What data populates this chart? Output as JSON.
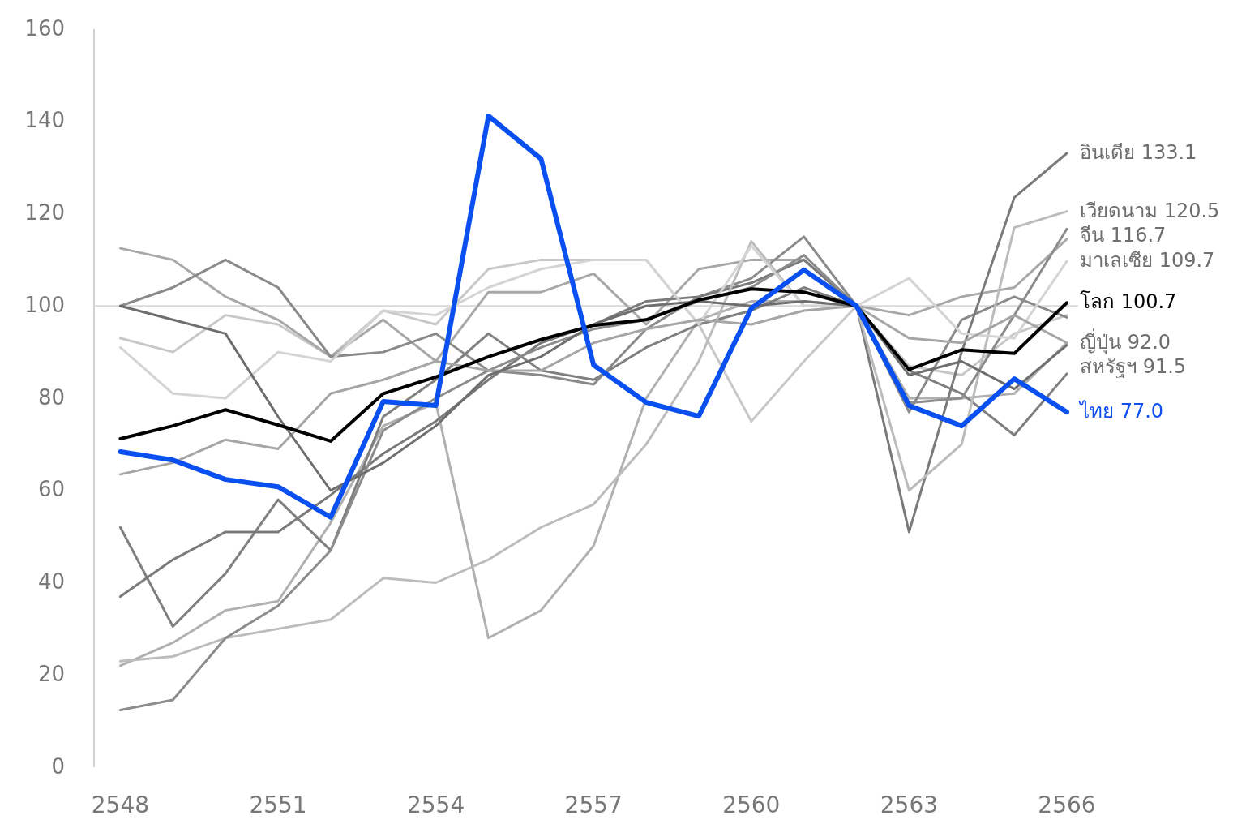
{
  "chart_data": {
    "type": "line",
    "x": [
      2548,
      2549,
      2550,
      2551,
      2552,
      2553,
      2554,
      2555,
      2556,
      2557,
      2558,
      2559,
      2560,
      2561,
      2562,
      2563,
      2564,
      2565,
      2566
    ],
    "xlim": [
      2547.5,
      2566
    ],
    "xticks": [
      2548,
      2551,
      2554,
      2557,
      2560,
      2563,
      2566
    ],
    "ylim": [
      0,
      160
    ],
    "yticks": [
      0,
      20,
      40,
      60,
      80,
      100,
      120,
      140,
      160
    ],
    "grid": false,
    "marker": "none",
    "line_style": "solid",
    "ref_lines": [
      {
        "axis": "y",
        "value": 100,
        "color": "#d9d9d9"
      }
    ],
    "series": [
      {
        "color": "#c8c8c8",
        "values": [
          93,
          90,
          98,
          96,
          89,
          99,
          96,
          108,
          110,
          110,
          110,
          96,
          75,
          88,
          100,
          87,
          85,
          94,
          98
        ]
      },
      {
        "color": "#b0b0b0",
        "values": [
          22,
          27,
          34,
          36,
          53,
          74,
          79,
          28,
          34,
          48,
          80,
          97,
          101,
          101,
          100,
          80,
          80,
          81,
          92
        ]
      },
      {
        "color": "#7f7f7f",
        "values": [
          52,
          30.5,
          42,
          58,
          47,
          76,
          84,
          94,
          86,
          84,
          91,
          96,
          99,
          104,
          100,
          86,
          81,
          72,
          85.3
        ]
      },
      {
        "color": "#a8a8a8",
        "values": [
          112.5,
          110,
          102,
          97,
          89,
          97,
          88,
          103,
          103,
          107,
          96,
          108,
          110,
          110,
          100,
          98,
          102,
          104,
          114.5
        ]
      },
      {
        "color": "#8a8a8a",
        "values": [
          100,
          104,
          110,
          104,
          89,
          90,
          94,
          86,
          85,
          83,
          95,
          102,
          106,
          115,
          100,
          77,
          97,
          102,
          97.5
        ]
      },
      {
        "name": "อินเดีย",
        "color": "#7a7a7a",
        "values": [
          37,
          45,
          51,
          51,
          59,
          68,
          75,
          84,
          92,
          96,
          101,
          102,
          105,
          110,
          100,
          51,
          90,
          123.5,
          133.1
        ],
        "value_labels": [
          null,
          null,
          null,
          null,
          null,
          null,
          null,
          null,
          null,
          null,
          null,
          null,
          null,
          null,
          null,
          null,
          null,
          null,
          "133.1"
        ]
      },
      {
        "name": "เวียดนาม",
        "color": "#bcbcbc",
        "values": [
          23,
          24,
          28,
          30,
          32,
          41,
          40,
          45,
          52,
          57,
          70,
          88,
          114,
          100,
          100,
          60,
          70,
          117,
          120.5
        ],
        "value_labels": [
          null,
          null,
          null,
          null,
          null,
          null,
          null,
          null,
          null,
          null,
          null,
          null,
          null,
          null,
          null,
          null,
          null,
          null,
          "120.5"
        ]
      },
      {
        "name": "จีน",
        "color": "#8c8c8c",
        "values": [
          12.4,
          14.6,
          28,
          35,
          47,
          73,
          80,
          86,
          91,
          95,
          97,
          101,
          104,
          111,
          100,
          79,
          80,
          98,
          116.7
        ],
        "value_labels": [
          null,
          null,
          null,
          null,
          null,
          null,
          null,
          null,
          null,
          null,
          null,
          null,
          null,
          null,
          null,
          null,
          null,
          null,
          "116.7"
        ]
      },
      {
        "name": "มาเลเซีย",
        "color": "#d4d4d4",
        "values": [
          91,
          81,
          80,
          90,
          88,
          99,
          98,
          104,
          108,
          110,
          110,
          96,
          113,
          100,
          100,
          106,
          94,
          93,
          109.7
        ],
        "value_labels": [
          null,
          null,
          null,
          null,
          null,
          null,
          null,
          null,
          null,
          null,
          null,
          null,
          null,
          null,
          null,
          null,
          null,
          null,
          "109.7"
        ]
      },
      {
        "name": "ญี่ปุ่น",
        "color": "#a6a6a6",
        "values": [
          63.5,
          66,
          71,
          69,
          81,
          84,
          88,
          86,
          86,
          92,
          95,
          97,
          96,
          99,
          100,
          93,
          92,
          98,
          92.0
        ],
        "value_labels": [
          null,
          null,
          null,
          null,
          null,
          null,
          null,
          null,
          null,
          null,
          null,
          null,
          null,
          null,
          null,
          null,
          null,
          null,
          "92.0"
        ]
      },
      {
        "name": "สหรัฐฯ",
        "color": "#6e6e6e",
        "values": [
          100,
          97,
          94,
          76,
          60,
          66,
          74,
          85,
          89,
          96,
          100,
          101,
          100,
          101,
          100,
          85,
          88,
          82,
          91.5
        ],
        "value_labels": [
          null,
          null,
          null,
          null,
          null,
          null,
          null,
          null,
          null,
          null,
          null,
          null,
          null,
          null,
          null,
          null,
          null,
          null,
          "91.5"
        ]
      },
      {
        "name": "โลก",
        "color": "#000000",
        "values": [
          71.2,
          74,
          77.5,
          74.2,
          70.7,
          81,
          84.6,
          89,
          92.7,
          95.8,
          97,
          101.3,
          103.7,
          103,
          100,
          86.2,
          90.5,
          89.7,
          100.7
        ],
        "value_labels": [
          null,
          null,
          null,
          null,
          null,
          null,
          null,
          null,
          null,
          null,
          null,
          null,
          null,
          null,
          null,
          null,
          null,
          null,
          "100.7"
        ]
      },
      {
        "name": "ไทย",
        "color": "#0a4ff0",
        "values": [
          68.4,
          66.6,
          62.4,
          60.8,
          54.2,
          79.3,
          78.4,
          141.2,
          131.9,
          87.2,
          79.1,
          76.1,
          99.5,
          107.8,
          100,
          78.4,
          74,
          84.2,
          77.0
        ],
        "value_labels": [
          null,
          null,
          null,
          null,
          null,
          null,
          null,
          null,
          null,
          null,
          null,
          null,
          null,
          null,
          null,
          null,
          null,
          null,
          "77.0"
        ]
      }
    ]
  }
}
